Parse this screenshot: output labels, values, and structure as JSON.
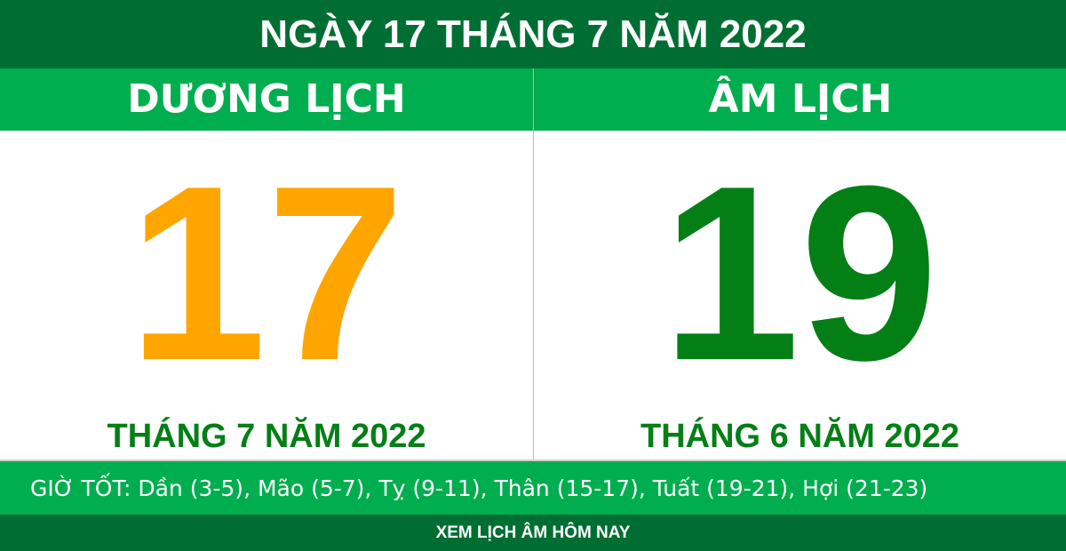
{
  "title": "NGÀY 17 THÁNG 7 NĂM 2022",
  "solar": {
    "label": "DƯƠNG LỊCH",
    "day": "17",
    "month_year": "THÁNG 7 NĂM 2022",
    "color": "#FFA500"
  },
  "lunar": {
    "label": "ÂM LỊCH",
    "day": "19",
    "month_year": "THÁNG 6 NĂM 2022",
    "color": "#037F16"
  },
  "good_hours": "GIỜ TỐT: Dần (3-5), Mão (5-7), Tỵ (9-11), Thân (15-17), Tuất (19-21), Hợi (21-23)",
  "footer_link": "XEM LỊCH ÂM HÔM NAY"
}
